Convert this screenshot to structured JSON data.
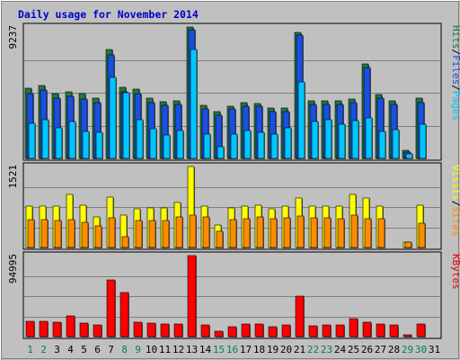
{
  "chart_data": {
    "type": "bar",
    "title": "Daily usage for November 2014",
    "days": [
      "1",
      "2",
      "3",
      "4",
      "5",
      "6",
      "7",
      "8",
      "9",
      "10",
      "11",
      "12",
      "13",
      "14",
      "15",
      "16",
      "17",
      "18",
      "19",
      "20",
      "21",
      "22",
      "23",
      "24",
      "25",
      "26",
      "27",
      "28",
      "29",
      "30",
      "31"
    ],
    "weekend_days": [
      "1",
      "2",
      "8",
      "9",
      "15",
      "16",
      "22",
      "23",
      "29",
      "30"
    ],
    "panels": [
      {
        "id": "traffic",
        "max_label": "9237",
        "ymax": 9237,
        "legend": [
          {
            "label": "Pages",
            "color": "#00c6ff"
          },
          {
            "label": "Files",
            "color": "#1a4fe0"
          },
          {
            "label": "Hits",
            "color": "#1f7a3c"
          }
        ],
        "series": [
          {
            "name": "Hits",
            "color": "#1f7a3c",
            "values": [
              4910,
              5140,
              4580,
              4710,
              4530,
              4210,
              7630,
              5010,
              4850,
              4210,
              3990,
              4070,
              9237,
              3750,
              3280,
              3700,
              3930,
              3870,
              3540,
              3520,
              8860,
              4020,
              4050,
              4050,
              4150,
              6670,
              4520,
              4080,
              590,
              4210,
              0
            ]
          },
          {
            "name": "Files",
            "color": "#1a4fe0",
            "values": [
              4550,
              4790,
              4240,
              4370,
              4200,
              3900,
              7260,
              4690,
              4550,
              3940,
              3720,
              3800,
              9040,
              3510,
              3060,
              3460,
              3690,
              3660,
              3310,
              3300,
              8670,
              3770,
              3810,
              3810,
              3900,
              6420,
              4230,
              3800,
              470,
              3930,
              0
            ]
          },
          {
            "name": "Pages",
            "color": "#00c6ff",
            "values": [
              2480,
              2720,
              2160,
              2600,
              1920,
              1840,
              5720,
              4640,
              2700,
              2080,
              1650,
              1970,
              7640,
              1710,
              820,
              1700,
              1990,
              1810,
              1690,
              2180,
              5360,
              2600,
              2720,
              2420,
              2650,
              2860,
              1870,
              2000,
              330,
              2380,
              0
            ]
          }
        ]
      },
      {
        "id": "visitors",
        "max_label": "1521",
        "ymax": 1521,
        "legend": [
          {
            "label": "Sites",
            "color": "#ff8c00"
          },
          {
            "label": "Visits",
            "color": "#ffff00"
          }
        ],
        "series": [
          {
            "name": "Visits",
            "color": "#ffff00",
            "values": [
              780,
              780,
              770,
              990,
              800,
              580,
              950,
              610,
              720,
              740,
              750,
              850,
              1521,
              770,
              420,
              740,
              780,
              800,
              730,
              780,
              930,
              770,
              770,
              770,
              1000,
              930,
              780,
              0,
              100,
              800,
              0
            ]
          },
          {
            "name": "Sites",
            "color": "#ff8c00",
            "values": [
              530,
              530,
              500,
              520,
              480,
              410,
              560,
              210,
              500,
              500,
              500,
              580,
              600,
              580,
              300,
              520,
              540,
              580,
              540,
              560,
              590,
              550,
              550,
              540,
              600,
              540,
              540,
              0,
              100,
              450,
              0
            ]
          }
        ]
      },
      {
        "id": "kbytes",
        "max_label": "94995",
        "ymax": 94995,
        "legend": [
          {
            "label": "KBytes",
            "color": "#e80000"
          }
        ],
        "series": [
          {
            "name": "KBytes",
            "color": "#ff0000",
            "values": [
              17800,
              18400,
              17200,
              24400,
              16100,
              13300,
              66200,
              51500,
              16500,
              15800,
              14500,
              14900,
              94995,
              13400,
              6000,
              11700,
              14600,
              14300,
              12100,
              13300,
              47300,
              13100,
              13800,
              14000,
              20600,
              17000,
              14700,
              14000,
              1600,
              14500,
              0
            ]
          }
        ]
      }
    ]
  }
}
